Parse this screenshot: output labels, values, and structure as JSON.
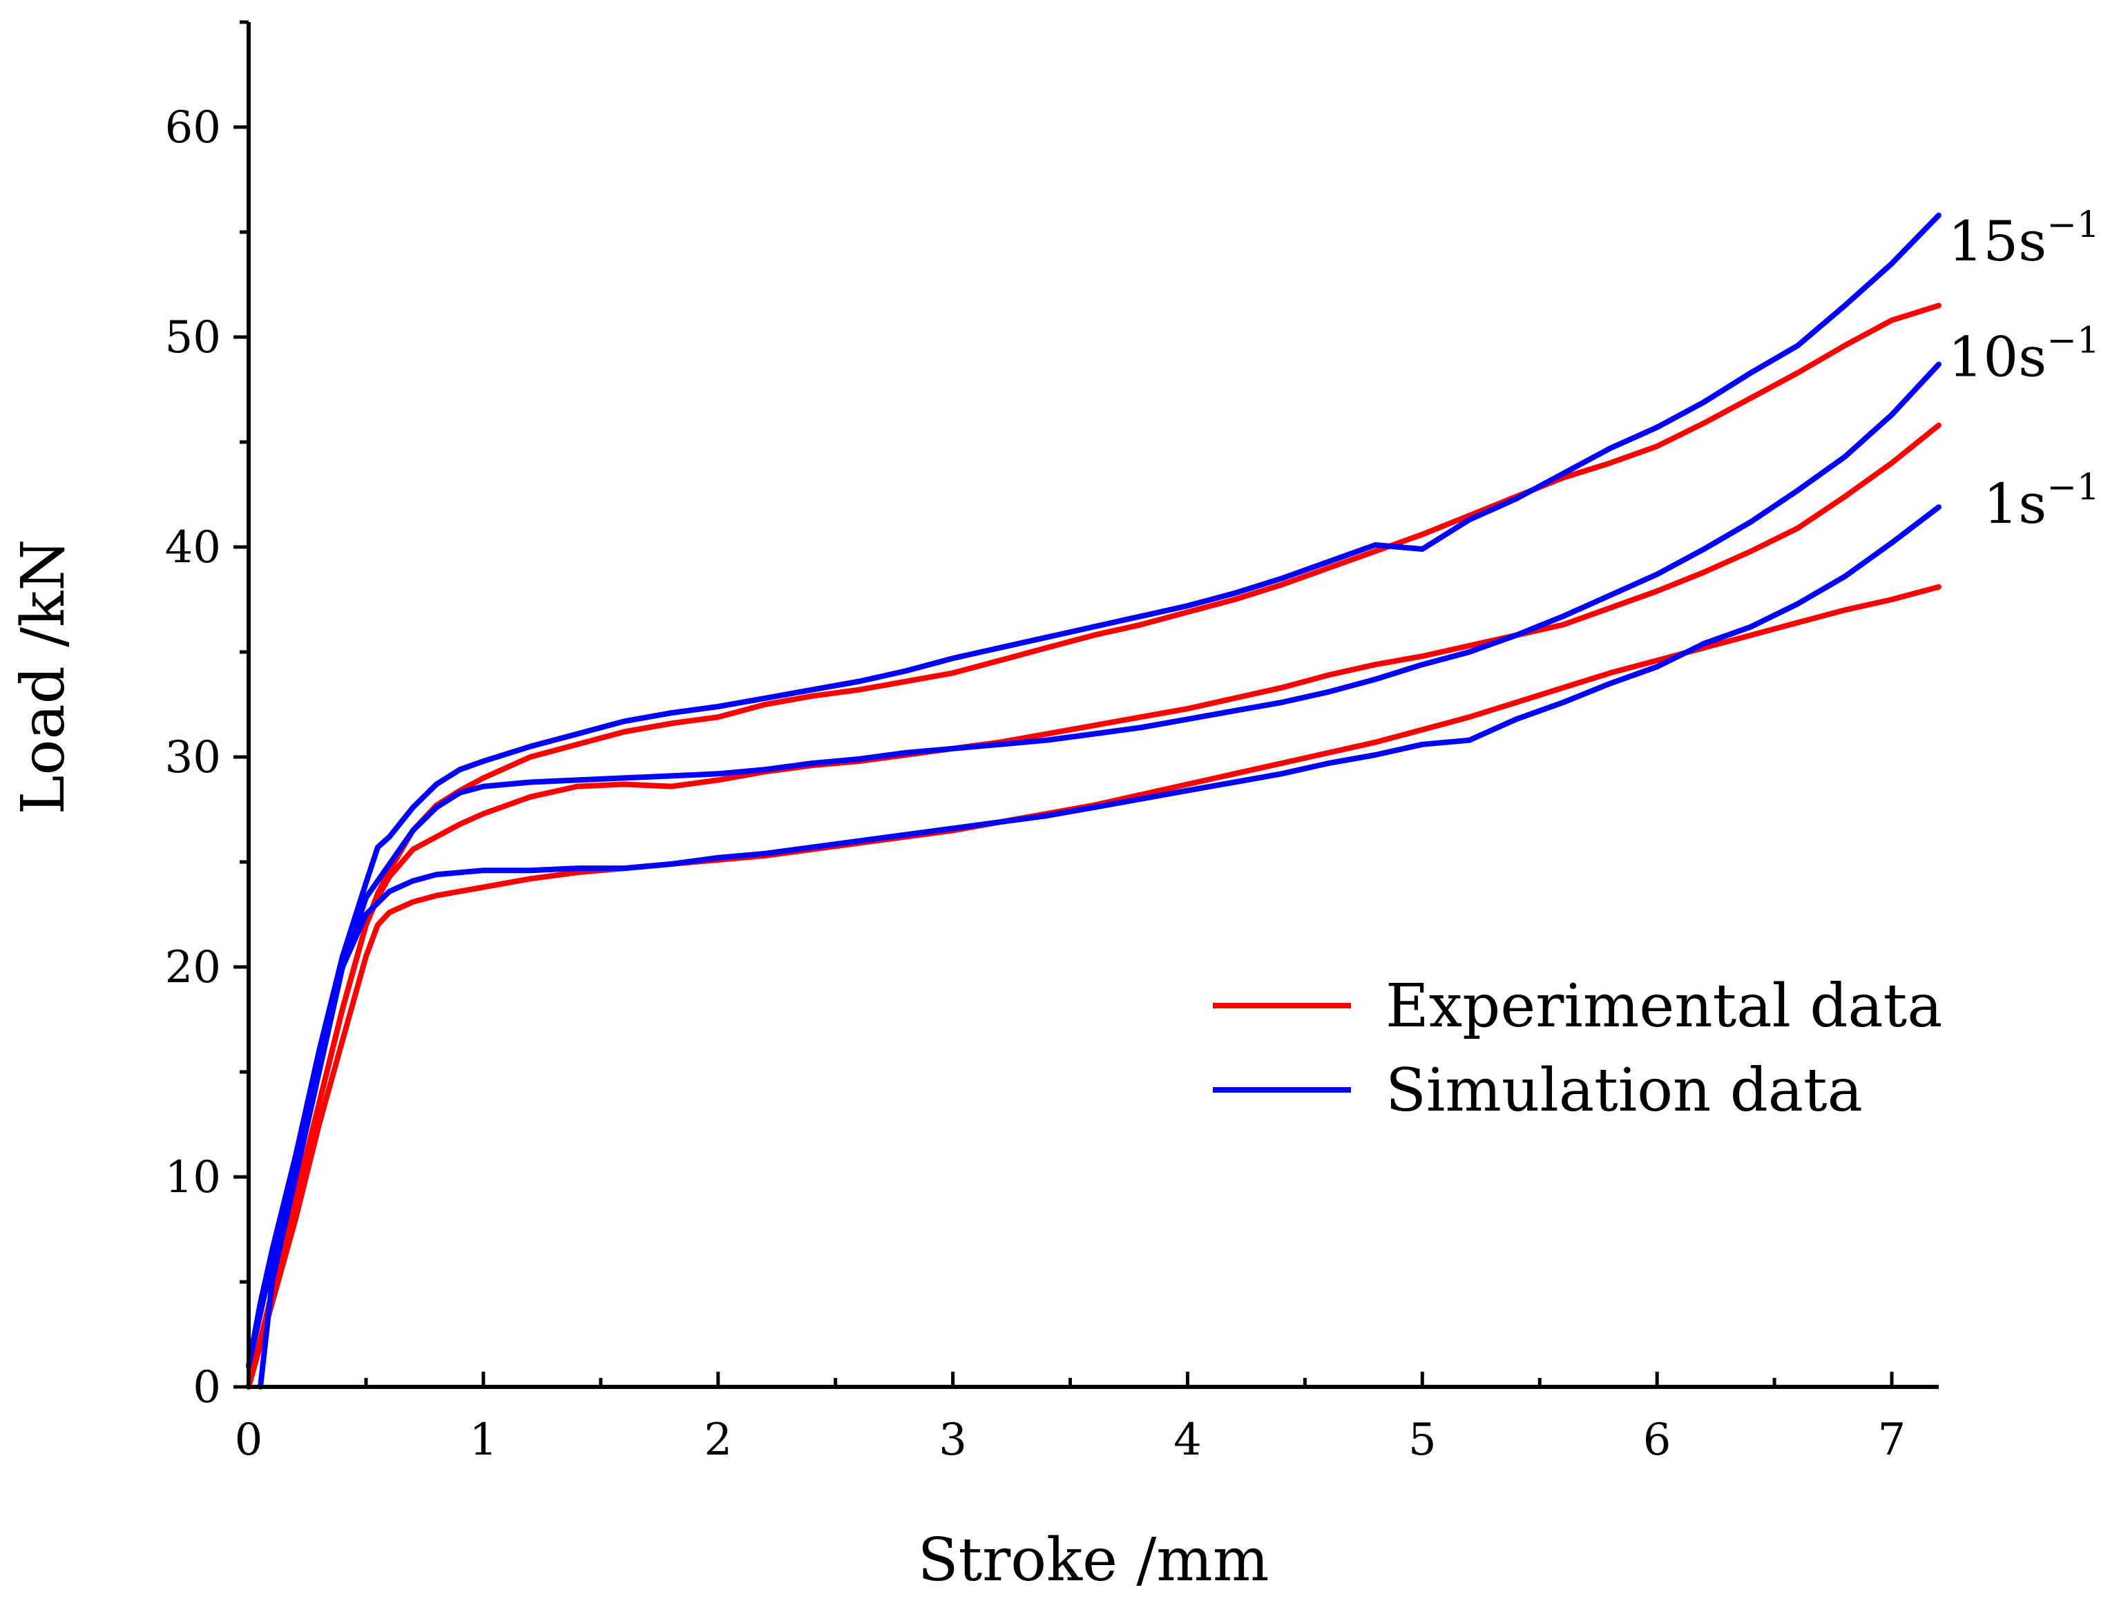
{
  "chart_data": {
    "type": "line",
    "title": "",
    "xlabel": "Stroke /mm",
    "ylabel": "Load /kN",
    "xlim": [
      0,
      7.2
    ],
    "ylim": [
      0,
      65
    ],
    "xticks": [
      0,
      1,
      2,
      3,
      4,
      5,
      6,
      7
    ],
    "yticks": [
      0,
      10,
      20,
      30,
      40,
      50,
      60
    ],
    "grid": false,
    "legend": {
      "position": "lower-right",
      "entries": [
        {
          "label": "Experimental data",
          "color": "#ff0000"
        },
        {
          "label": "Simulation data",
          "color": "#0000ff"
        }
      ]
    },
    "rate_labels": [
      {
        "base": "15s",
        "sup": "−1",
        "at_y": 54.5
      },
      {
        "base": "10s",
        "sup": "−1",
        "at_y": 49.0
      },
      {
        "base": "1s",
        "sup": "−1",
        "at_y": 42.0
      }
    ],
    "series": [
      {
        "name": "Experimental 15s-1",
        "kind": "Experimental data",
        "color": "#ff0000",
        "x": [
          0,
          0.1,
          0.2,
          0.3,
          0.4,
          0.5,
          0.55,
          0.6,
          0.7,
          0.8,
          0.9,
          1.0,
          1.2,
          1.4,
          1.6,
          1.8,
          2.0,
          2.2,
          2.4,
          2.6,
          2.8,
          3.0,
          3.2,
          3.4,
          3.6,
          3.8,
          4.0,
          4.2,
          4.4,
          4.6,
          4.8,
          5.0,
          5.2,
          5.4,
          5.6,
          5.8,
          6.0,
          6.2,
          6.4,
          6.6,
          6.8,
          7.0,
          7.2
        ],
        "y": [
          0,
          4.5,
          9,
          13.5,
          18,
          22,
          23.5,
          24.6,
          26.5,
          27.7,
          28.4,
          29,
          30,
          30.6,
          31.2,
          31.6,
          31.9,
          32.5,
          32.9,
          33.2,
          33.6,
          34,
          34.6,
          35.2,
          35.8,
          36.3,
          36.9,
          37.5,
          38.2,
          39,
          39.8,
          40.6,
          41.5,
          42.4,
          43.3,
          44,
          44.8,
          45.9,
          47.1,
          48.3,
          49.6,
          50.8,
          51.5
        ]
      },
      {
        "name": "Simulation 15s-1",
        "kind": "Simulation data",
        "color": "#0000ff",
        "x": [
          0,
          0.05,
          0.1,
          0.2,
          0.3,
          0.4,
          0.5,
          0.55,
          0.6,
          0.7,
          0.8,
          0.9,
          1.0,
          1.2,
          1.4,
          1.6,
          1.8,
          2.0,
          2.2,
          2.4,
          2.6,
          2.8,
          3.0,
          3.2,
          3.4,
          3.6,
          3.8,
          4.0,
          4.2,
          4.4,
          4.6,
          4.8,
          5.0,
          5.2,
          5.4,
          5.6,
          5.8,
          6.0,
          6.2,
          6.4,
          6.6,
          6.8,
          7.0,
          7.2
        ],
        "y": [
          1,
          4,
          6.5,
          11,
          16,
          20.5,
          24,
          25.7,
          26.2,
          27.6,
          28.7,
          29.4,
          29.8,
          30.5,
          31.1,
          31.7,
          32.1,
          32.4,
          32.8,
          33.2,
          33.6,
          34.1,
          34.7,
          35.2,
          35.7,
          36.2,
          36.7,
          37.2,
          37.8,
          38.5,
          39.3,
          40.1,
          39.9,
          41.3,
          42.3,
          43.5,
          44.7,
          45.7,
          46.9,
          48.3,
          49.6,
          51.5,
          53.5,
          55.8
        ]
      },
      {
        "name": "Experimental 10s-1",
        "kind": "Experimental data",
        "color": "#ff0000",
        "x": [
          0,
          0.1,
          0.2,
          0.3,
          0.4,
          0.5,
          0.55,
          0.6,
          0.7,
          0.8,
          0.9,
          1.0,
          1.2,
          1.4,
          1.6,
          1.8,
          2.0,
          2.2,
          2.4,
          2.6,
          2.8,
          3.0,
          3.2,
          3.4,
          3.6,
          3.8,
          4.0,
          4.2,
          4.4,
          4.6,
          4.8,
          5.0,
          5.2,
          5.4,
          5.6,
          5.8,
          6.0,
          6.2,
          6.4,
          6.6,
          6.8,
          7.0,
          7.2
        ],
        "y": [
          0,
          4.5,
          9,
          13.5,
          18,
          22,
          23.3,
          24.3,
          25.6,
          26.2,
          26.8,
          27.3,
          28.1,
          28.6,
          28.7,
          28.6,
          28.9,
          29.3,
          29.6,
          29.8,
          30.1,
          30.4,
          30.7,
          31.1,
          31.5,
          31.9,
          32.3,
          32.8,
          33.3,
          33.9,
          34.4,
          34.8,
          35.3,
          35.8,
          36.3,
          37.1,
          37.9,
          38.8,
          39.8,
          40.9,
          42.4,
          44,
          45.8
        ]
      },
      {
        "name": "Simulation 10s-1",
        "kind": "Simulation data",
        "color": "#0000ff",
        "x": [
          0,
          0.05,
          0.1,
          0.2,
          0.3,
          0.4,
          0.5,
          0.6,
          0.7,
          0.8,
          0.9,
          1.0,
          1.2,
          1.4,
          1.6,
          1.8,
          2.0,
          2.2,
          2.4,
          2.6,
          2.8,
          3.0,
          3.2,
          3.4,
          3.6,
          3.8,
          4.0,
          4.2,
          4.4,
          4.6,
          4.8,
          5.0,
          5.2,
          5.4,
          5.6,
          5.8,
          6.0,
          6.2,
          6.4,
          6.6,
          6.8,
          7.0,
          7.2
        ],
        "y": [
          1,
          3.5,
          6,
          10.5,
          15.5,
          20,
          23.3,
          24.9,
          26.5,
          27.6,
          28.3,
          28.6,
          28.8,
          28.9,
          29,
          29.1,
          29.2,
          29.4,
          29.7,
          29.9,
          30.2,
          30.4,
          30.6,
          30.8,
          31.1,
          31.4,
          31.8,
          32.2,
          32.6,
          33.1,
          33.7,
          34.4,
          35,
          35.8,
          36.7,
          37.7,
          38.7,
          39.9,
          41.2,
          42.7,
          44.3,
          46.3,
          48.7
        ]
      },
      {
        "name": "Experimental 1s-1",
        "kind": "Experimental data",
        "color": "#ff0000",
        "x": [
          0,
          0.1,
          0.2,
          0.3,
          0.4,
          0.5,
          0.55,
          0.6,
          0.7,
          0.8,
          1.0,
          1.2,
          1.4,
          1.6,
          1.8,
          2.0,
          2.2,
          2.4,
          2.6,
          2.8,
          3.0,
          3.2,
          3.4,
          3.6,
          3.8,
          4.0,
          4.2,
          4.4,
          4.6,
          4.8,
          5.0,
          5.2,
          5.4,
          5.6,
          5.8,
          6.0,
          6.2,
          6.4,
          6.6,
          6.8,
          7.0,
          7.2
        ],
        "y": [
          0,
          4,
          8,
          12.5,
          16.5,
          20.5,
          22,
          22.6,
          23.1,
          23.4,
          23.8,
          24.2,
          24.5,
          24.7,
          24.9,
          25.1,
          25.3,
          25.6,
          25.9,
          26.2,
          26.5,
          26.9,
          27.3,
          27.7,
          28.2,
          28.7,
          29.2,
          29.7,
          30.2,
          30.7,
          31.3,
          31.9,
          32.6,
          33.3,
          34,
          34.6,
          35.2,
          35.8,
          36.4,
          37,
          37.5,
          38.1
        ]
      },
      {
        "name": "Simulation 1s-1",
        "kind": "Simulation data",
        "color": "#0000ff",
        "x": [
          0.05,
          0.1,
          0.2,
          0.3,
          0.4,
          0.5,
          0.6,
          0.7,
          0.8,
          0.9,
          1.0,
          1.2,
          1.4,
          1.6,
          1.8,
          2.0,
          2.2,
          2.4,
          2.6,
          2.8,
          3.0,
          3.2,
          3.4,
          3.6,
          3.8,
          4.0,
          4.2,
          4.4,
          4.6,
          4.8,
          5.0,
          5.2,
          5.4,
          5.6,
          5.8,
          6.0,
          6.2,
          6.4,
          6.6,
          6.8,
          7.0,
          7.2
        ],
        "y": [
          0,
          5,
          10,
          15,
          20,
          22.5,
          23.6,
          24.1,
          24.4,
          24.5,
          24.6,
          24.6,
          24.7,
          24.7,
          24.9,
          25.2,
          25.4,
          25.7,
          26,
          26.3,
          26.6,
          26.9,
          27.2,
          27.6,
          28,
          28.4,
          28.8,
          29.2,
          29.7,
          30.1,
          30.6,
          30.8,
          31.8,
          32.6,
          33.5,
          34.3,
          35.4,
          36.2,
          37.3,
          38.6,
          40.2,
          41.9
        ]
      }
    ]
  }
}
